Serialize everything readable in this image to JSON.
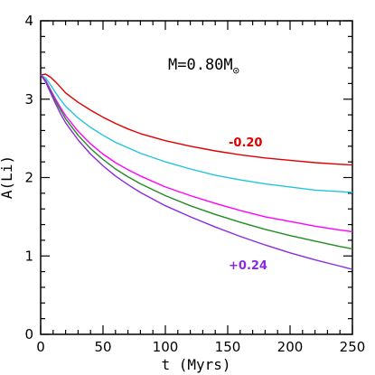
{
  "chart_data": {
    "type": "line",
    "title": "",
    "xlabel": "t (Myrs)",
    "ylabel": "A(Li)",
    "xlim": [
      0,
      250
    ],
    "ylim": [
      0,
      4
    ],
    "xticks": [
      0,
      50,
      100,
      150,
      200,
      250
    ],
    "yticks": [
      0,
      1,
      2,
      3,
      4
    ],
    "grid": false,
    "annotation": {
      "prefix": "M=0.80M",
      "symbol": "⊙"
    },
    "series": [
      {
        "name": "-0.20",
        "color": "#e00000",
        "x": [
          0,
          4,
          8,
          12,
          16,
          20,
          30,
          40,
          50,
          60,
          70,
          80,
          100,
          120,
          140,
          160,
          180,
          200,
          220,
          240,
          250
        ],
        "y": [
          3.31,
          3.32,
          3.28,
          3.22,
          3.15,
          3.08,
          2.96,
          2.86,
          2.77,
          2.69,
          2.62,
          2.56,
          2.47,
          2.4,
          2.34,
          2.29,
          2.25,
          2.22,
          2.19,
          2.17,
          2.16
        ]
      },
      {
        "name": "",
        "color": "#22c4dc",
        "x": [
          0,
          4,
          8,
          12,
          16,
          20,
          30,
          40,
          50,
          60,
          70,
          80,
          100,
          120,
          140,
          160,
          180,
          200,
          220,
          240,
          250
        ],
        "y": [
          3.31,
          3.27,
          3.18,
          3.08,
          2.99,
          2.91,
          2.76,
          2.64,
          2.54,
          2.45,
          2.38,
          2.31,
          2.2,
          2.11,
          2.03,
          1.97,
          1.92,
          1.88,
          1.84,
          1.82,
          1.81
        ]
      },
      {
        "name": "",
        "color": "#ff00ff",
        "x": [
          0,
          4,
          8,
          12,
          16,
          20,
          30,
          40,
          50,
          60,
          70,
          80,
          100,
          120,
          140,
          160,
          180,
          200,
          220,
          240,
          250
        ],
        "y": [
          3.31,
          3.24,
          3.12,
          3.0,
          2.89,
          2.79,
          2.59,
          2.43,
          2.3,
          2.19,
          2.1,
          2.02,
          1.88,
          1.77,
          1.67,
          1.58,
          1.5,
          1.44,
          1.38,
          1.33,
          1.31
        ]
      },
      {
        "name": "",
        "color": "#228b22",
        "x": [
          0,
          4,
          8,
          12,
          16,
          20,
          30,
          40,
          50,
          60,
          70,
          80,
          100,
          120,
          140,
          160,
          180,
          200,
          220,
          240,
          250
        ],
        "y": [
          3.31,
          3.23,
          3.1,
          2.97,
          2.86,
          2.75,
          2.54,
          2.37,
          2.23,
          2.11,
          2.01,
          1.92,
          1.77,
          1.64,
          1.53,
          1.43,
          1.34,
          1.26,
          1.19,
          1.12,
          1.09
        ]
      },
      {
        "name": "+0.24",
        "color": "#8a2be2",
        "x": [
          0,
          4,
          8,
          12,
          16,
          20,
          30,
          40,
          50,
          60,
          70,
          80,
          100,
          120,
          140,
          160,
          180,
          200,
          220,
          240,
          250
        ],
        "y": [
          3.31,
          3.22,
          3.08,
          2.94,
          2.81,
          2.7,
          2.48,
          2.3,
          2.15,
          2.02,
          1.91,
          1.81,
          1.64,
          1.5,
          1.37,
          1.25,
          1.14,
          1.04,
          0.95,
          0.87,
          0.83
        ]
      }
    ]
  }
}
